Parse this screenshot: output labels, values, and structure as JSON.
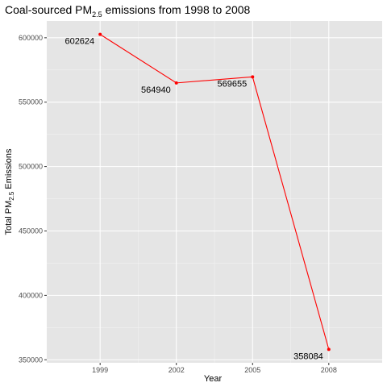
{
  "chart_data": {
    "type": "line",
    "title_main": "Coal-sourced PM",
    "title_sub": "2.5",
    "title_rest": " emissions from 1998 to 2008",
    "xlabel": "Year",
    "ylabel_main": "Total PM",
    "ylabel_sub": "2.5",
    "ylabel_rest": " Emissions",
    "x": [
      1999,
      2002,
      2005,
      2008
    ],
    "y": [
      602624,
      564940,
      569655,
      358084
    ],
    "data_labels": [
      "602624",
      "564940",
      "569655",
      "358084"
    ],
    "xlim": [
      1996.9,
      2010.1
    ],
    "ylim": [
      347656,
      613052
    ],
    "x_ticks": [
      1999,
      2002,
      2005,
      2008
    ],
    "x_tick_labels": [
      "1999",
      "2002",
      "2005",
      "2008"
    ],
    "y_ticks": [
      350000,
      400000,
      450000,
      500000,
      550000,
      600000
    ],
    "y_tick_labels": [
      "350000",
      "400000",
      "450000",
      "500000",
      "550000",
      "600000"
    ],
    "grid": true,
    "legend": "none",
    "colors": {
      "panel": "#e5e5e5",
      "grid_major": "#ffffff",
      "grid_minor": "#f2f2f2",
      "line": "#ff0000",
      "point": "#ff0000",
      "text": "#000000",
      "tick_text": "#4d4d4d",
      "tick": "#333333"
    }
  }
}
